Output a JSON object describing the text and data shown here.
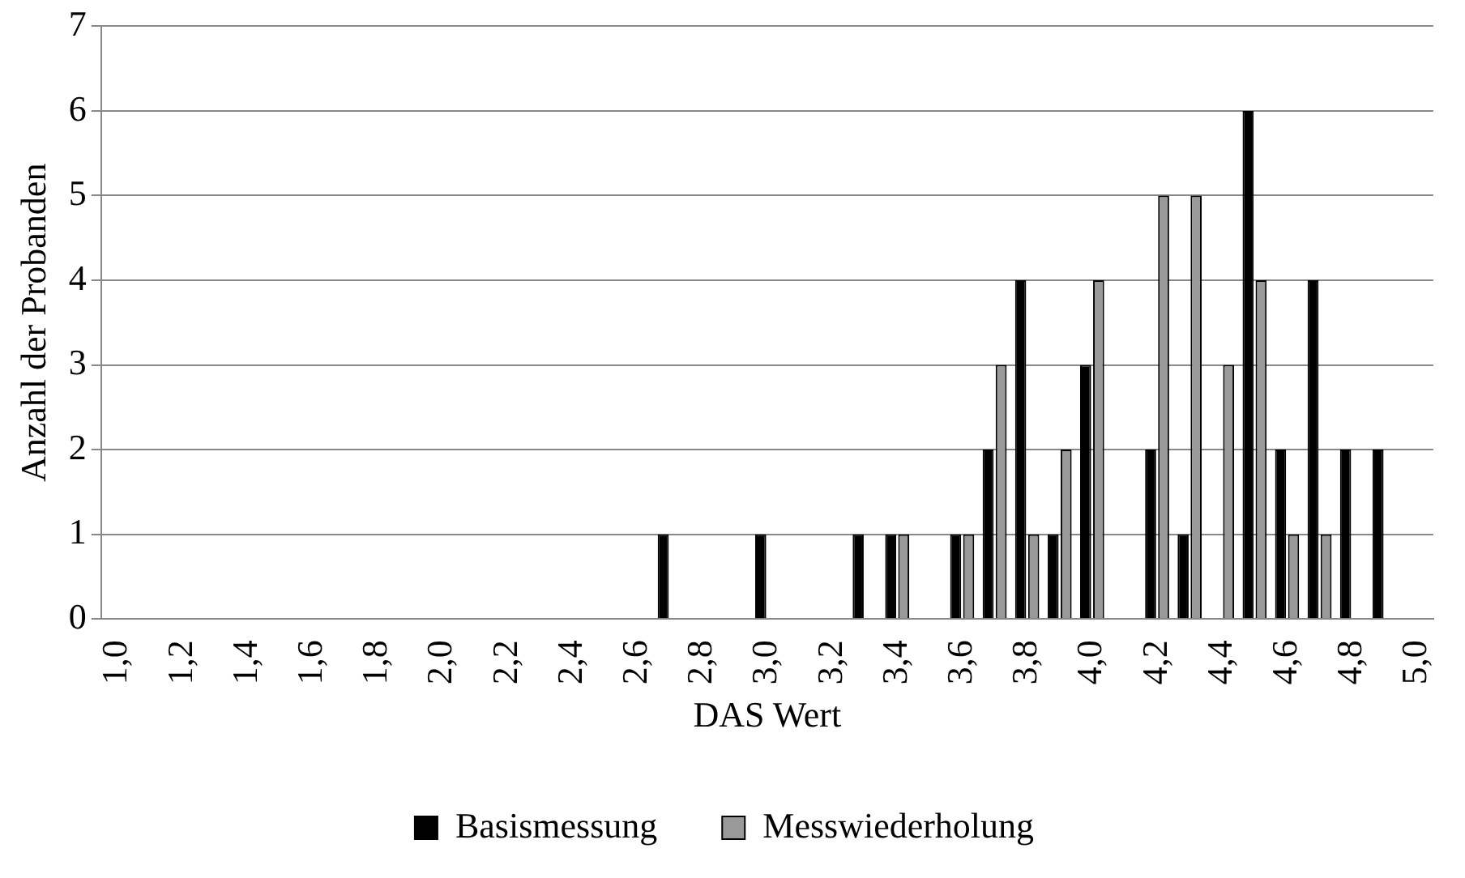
{
  "chart_data": {
    "type": "bar",
    "xlabel": "DAS Wert",
    "ylabel": "Anzahl der Probanden",
    "categories": [
      "1,0",
      null,
      "1,2",
      null,
      "1,4",
      null,
      "1,6",
      null,
      "1,8",
      null,
      "2,0",
      null,
      "2,2",
      null,
      "2,4",
      null,
      "2,6",
      null,
      "2,8",
      null,
      "3,0",
      null,
      "3,2",
      null,
      "3,4",
      null,
      "3,6",
      null,
      "3,8",
      null,
      "4,0",
      null,
      "4,2",
      null,
      "4,4",
      null,
      "4,6",
      null,
      "4,8",
      null,
      "5,0"
    ],
    "series": [
      {
        "name": "Basismessung",
        "color": "#000000",
        "values": [
          0,
          0,
          0,
          0,
          0,
          0,
          0,
          0,
          0,
          0,
          0,
          0,
          0,
          0,
          0,
          0,
          0,
          1,
          0,
          0,
          1,
          0,
          0,
          1,
          1,
          0,
          1,
          2,
          4,
          1,
          3,
          0,
          2,
          1,
          0,
          6,
          2,
          4,
          2,
          2,
          0
        ]
      },
      {
        "name": "Messwiederholung",
        "color": "#999999",
        "values": [
          0,
          0,
          0,
          0,
          0,
          0,
          0,
          0,
          0,
          0,
          0,
          0,
          0,
          0,
          0,
          0,
          0,
          0,
          0,
          0,
          0,
          0,
          0,
          0,
          1,
          0,
          1,
          3,
          1,
          2,
          4,
          0,
          5,
          5,
          3,
          4,
          1,
          1,
          0,
          0,
          0
        ]
      }
    ],
    "ylim": [
      0,
      7
    ],
    "yticks": [
      0,
      1,
      2,
      3,
      4,
      5,
      6,
      7
    ],
    "grid": "y",
    "legend": "bottom"
  }
}
